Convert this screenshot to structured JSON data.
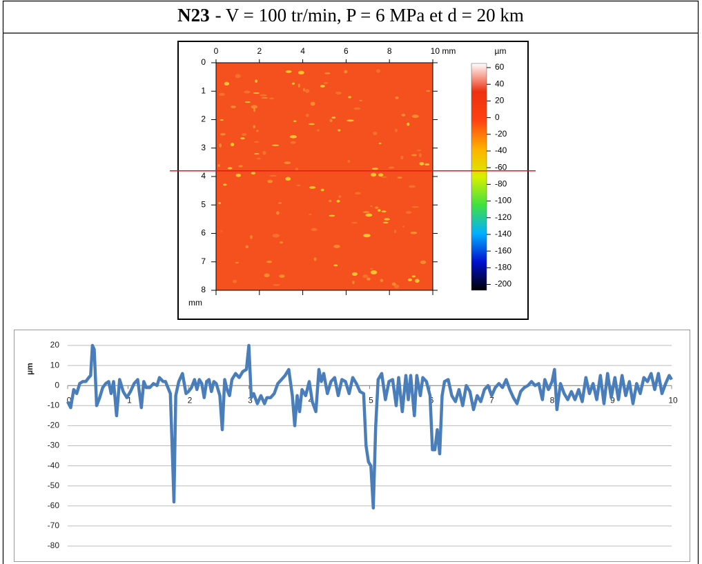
{
  "header": {
    "code": "N23",
    "conditions": "- V = 100 tr/min, P = 6 MPa et d = 20 km"
  },
  "chart_data": [
    {
      "type": "heatmap",
      "xlim": [
        0,
        10
      ],
      "xticks": [
        0,
        2,
        4,
        6,
        8,
        {
          "value": 10,
          "label": "10 mm"
        }
      ],
      "ylim": [
        0,
        8
      ],
      "yticks": [
        0,
        1,
        2,
        3,
        4,
        5,
        6,
        7,
        8
      ],
      "y_label": "mm",
      "fill_color": "#f4511e",
      "colorbar_label": "µm",
      "clim": [
        -207,
        65
      ],
      "colorbar_ticks": [
        60,
        40,
        20,
        0,
        -20,
        -40,
        -60,
        -80,
        -100,
        -120,
        -140,
        -160,
        -180,
        -200
      ],
      "colorscale": [
        "#000000",
        "#0010d0",
        "#00b0ff",
        "#40e040",
        "#d8f000",
        "#ffb000",
        "#ff4010",
        "#ee3010",
        "#ffffff"
      ],
      "profile_y": 3.8,
      "profile_color": "#e8141c"
    },
    {
      "type": "line",
      "y_label": "µm",
      "color": "#4a7ebb",
      "xlim": [
        0,
        10
      ],
      "xticks": [
        0,
        1,
        2,
        3,
        4,
        5,
        6,
        7,
        8,
        9,
        10
      ],
      "ylim": [
        -80,
        20
      ],
      "yticks": [
        -80,
        -70,
        -60,
        -50,
        -40,
        -30,
        -20,
        -10,
        0,
        10,
        20
      ],
      "grid": true,
      "x": [
        0,
        0.05,
        0.1,
        0.15,
        0.2,
        0.25,
        0.3,
        0.35,
        0.38,
        0.41,
        0.44,
        0.48,
        0.53,
        0.58,
        0.63,
        0.68,
        0.72,
        0.76,
        0.81,
        0.86,
        0.92,
        0.98,
        1.04,
        1.1,
        1.16,
        1.22,
        1.26,
        1.3,
        1.36,
        1.42,
        1.48,
        1.52,
        1.58,
        1.62,
        1.66,
        1.7,
        1.74,
        1.76,
        1.79,
        1.84,
        1.9,
        1.96,
        2.0,
        2.05,
        2.1,
        2.14,
        2.18,
        2.22,
        2.26,
        2.3,
        2.34,
        2.38,
        2.42,
        2.46,
        2.52,
        2.56,
        2.6,
        2.64,
        2.68,
        2.72,
        2.78,
        2.84,
        2.9,
        2.96,
        3.0,
        3.04,
        3.08,
        3.14,
        3.2,
        3.26,
        3.3,
        3.36,
        3.42,
        3.48,
        3.54,
        3.6,
        3.66,
        3.72,
        3.76,
        3.8,
        3.84,
        3.88,
        3.94,
        4.0,
        4.05,
        4.11,
        4.16,
        4.2,
        4.24,
        4.3,
        4.36,
        4.42,
        4.48,
        4.54,
        4.6,
        4.66,
        4.72,
        4.78,
        4.84,
        4.9,
        4.94,
        4.98,
        5.02,
        5.06,
        5.1,
        5.14,
        5.2,
        5.26,
        5.32,
        5.38,
        5.44,
        5.48,
        5.54,
        5.6,
        5.64,
        5.68,
        5.74,
        5.78,
        5.84,
        5.88,
        5.94,
        6.0,
        6.04,
        6.08,
        6.12,
        6.16,
        6.2,
        6.24,
        6.3,
        6.36,
        6.42,
        6.48,
        6.54,
        6.6,
        6.66,
        6.72,
        6.78,
        6.84,
        6.9,
        6.96,
        7.02,
        7.08,
        7.14,
        7.2,
        7.26,
        7.32,
        7.38,
        7.44,
        7.5,
        7.56,
        7.62,
        7.68,
        7.74,
        7.8,
        7.86,
        7.9,
        7.96,
        8.02,
        8.06,
        8.1,
        8.16,
        8.22,
        8.28,
        8.34,
        8.4,
        8.46,
        8.52,
        8.58,
        8.64,
        8.7,
        8.76,
        8.82,
        8.88,
        8.94,
        9.0,
        9.06,
        9.12,
        9.18,
        9.24,
        9.3,
        9.36,
        9.42,
        9.48,
        9.54,
        9.6,
        9.66,
        9.72,
        9.78,
        9.84,
        9.9,
        9.96,
        10
      ],
      "values": [
        -8,
        -11,
        -2,
        -4,
        1,
        2,
        2,
        4,
        5,
        20,
        18,
        -10,
        -6,
        -1,
        1,
        2,
        -4,
        2,
        -15,
        3,
        -3,
        -6,
        -3,
        1,
        3,
        -11,
        2,
        -1,
        -1,
        1,
        0,
        4,
        2,
        2,
        -1,
        -4,
        -40,
        -58,
        -5,
        2,
        6,
        -4,
        -3,
        -1,
        3,
        -2,
        3,
        1,
        -6,
        2,
        3,
        -3,
        2,
        1,
        -5,
        -22,
        3,
        -2,
        -5,
        3,
        6,
        4,
        7,
        8,
        20,
        -6,
        -4,
        -9,
        -5,
        -9,
        -6,
        -6,
        -4,
        1,
        3,
        5,
        8,
        -5,
        -20,
        -5,
        -13,
        -2,
        -5,
        2,
        -8,
        -13,
        8,
        2,
        6,
        -4,
        2,
        4,
        -5,
        3,
        2,
        -4,
        4,
        1,
        -3,
        -4,
        -30,
        -38,
        -40,
        -61,
        -20,
        3,
        6,
        -7,
        2,
        3,
        -10,
        4,
        -13,
        5,
        -7,
        5,
        -15,
        5,
        -5,
        4,
        2,
        -5,
        -32,
        -32,
        -22,
        -34,
        -5,
        2,
        3,
        -5,
        -8,
        -2,
        -10,
        0,
        -3,
        -12,
        -5,
        -8,
        -2,
        0,
        -5,
        -1,
        1,
        -1,
        3,
        -2,
        -6,
        -9,
        -3,
        -1,
        0,
        2,
        0,
        1,
        -7,
        3,
        -2,
        2,
        8,
        -12,
        1,
        -4,
        -7,
        -3,
        -7,
        -2,
        -8,
        4,
        -4,
        1,
        -7,
        5,
        -9,
        6,
        -6,
        4,
        -7,
        5,
        -5,
        2,
        -9,
        1,
        -4,
        4,
        2,
        6,
        -2,
        6,
        -4,
        1,
        5,
        3
      ]
    }
  ]
}
